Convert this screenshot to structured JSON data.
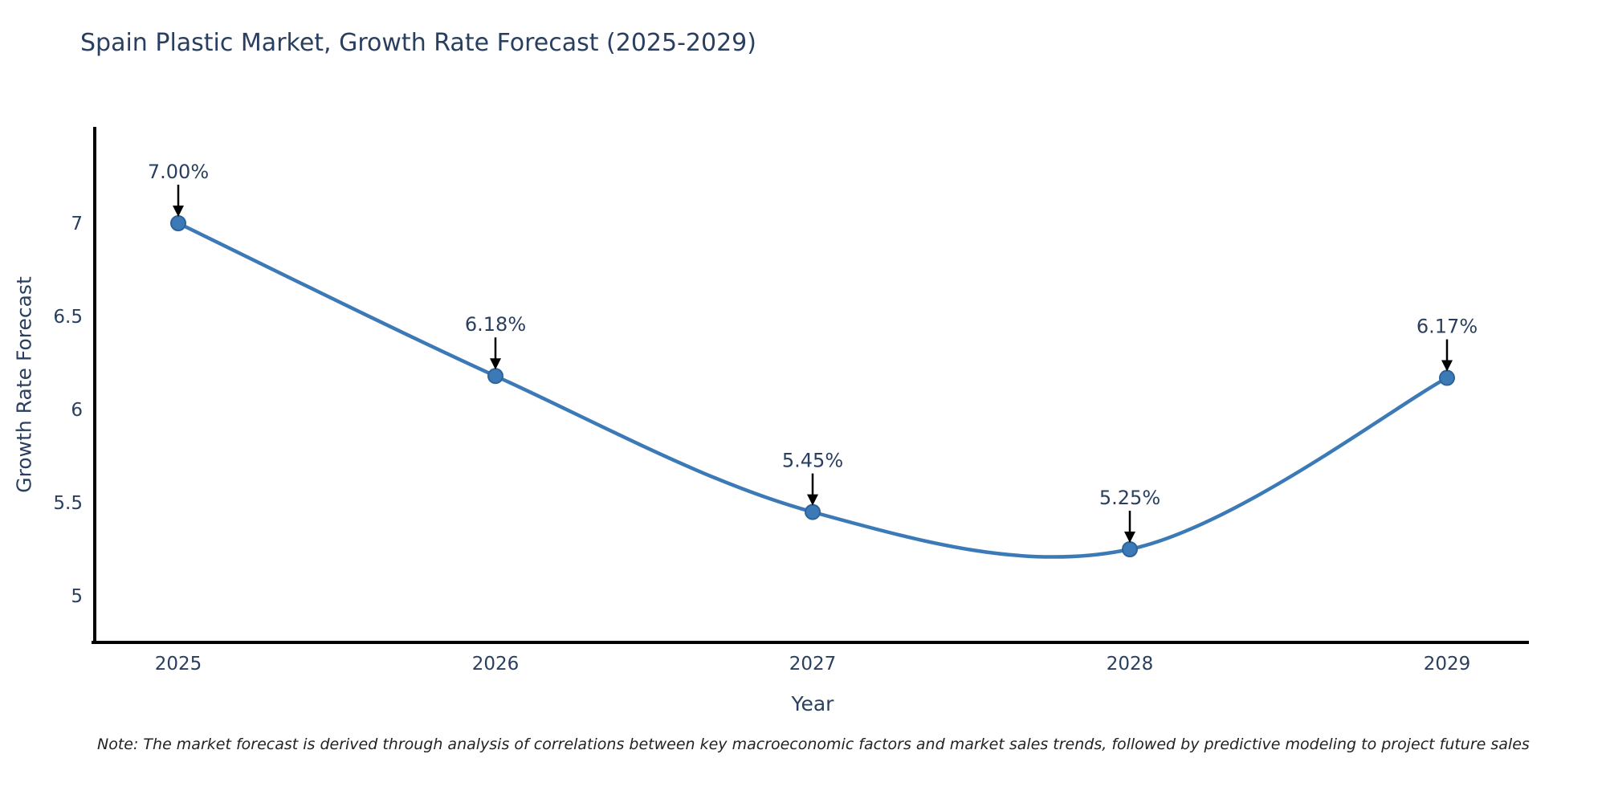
{
  "title": "Spain Plastic Market, Growth Rate Forecast (2025-2029)",
  "chart_data": {
    "type": "line",
    "line_shape": "spline",
    "title": "Spain Plastic Market, Growth Rate Forecast (2025-2029)",
    "xlabel": "Year",
    "ylabel": "Growth Rate Forecast",
    "categories": [
      "2025",
      "2026",
      "2027",
      "2028",
      "2029"
    ],
    "series": [
      {
        "name": "Growth Rate Forecast",
        "values": [
          7.0,
          6.18,
          5.45,
          5.25,
          6.17
        ]
      }
    ],
    "point_labels": [
      "7.00%",
      "6.18%",
      "5.45%",
      "5.25%",
      "6.17%"
    ],
    "y_ticks": [
      5,
      5.5,
      6,
      6.5,
      7
    ],
    "ylim": [
      4.75,
      7.5
    ],
    "grid": false,
    "legend_position": "none",
    "colors": {
      "line": "#3c7ab7",
      "marker_fill": "#3c7ab7",
      "marker_edge": "#2d6399",
      "axis_line": "#000000",
      "text": "#2a3f5f",
      "annotation_arrow": "#000000"
    }
  },
  "note": "Note: The market forecast is derived through analysis of correlations between key macroeconomic factors and market sales trends, followed by predictive modeling to project future sales"
}
